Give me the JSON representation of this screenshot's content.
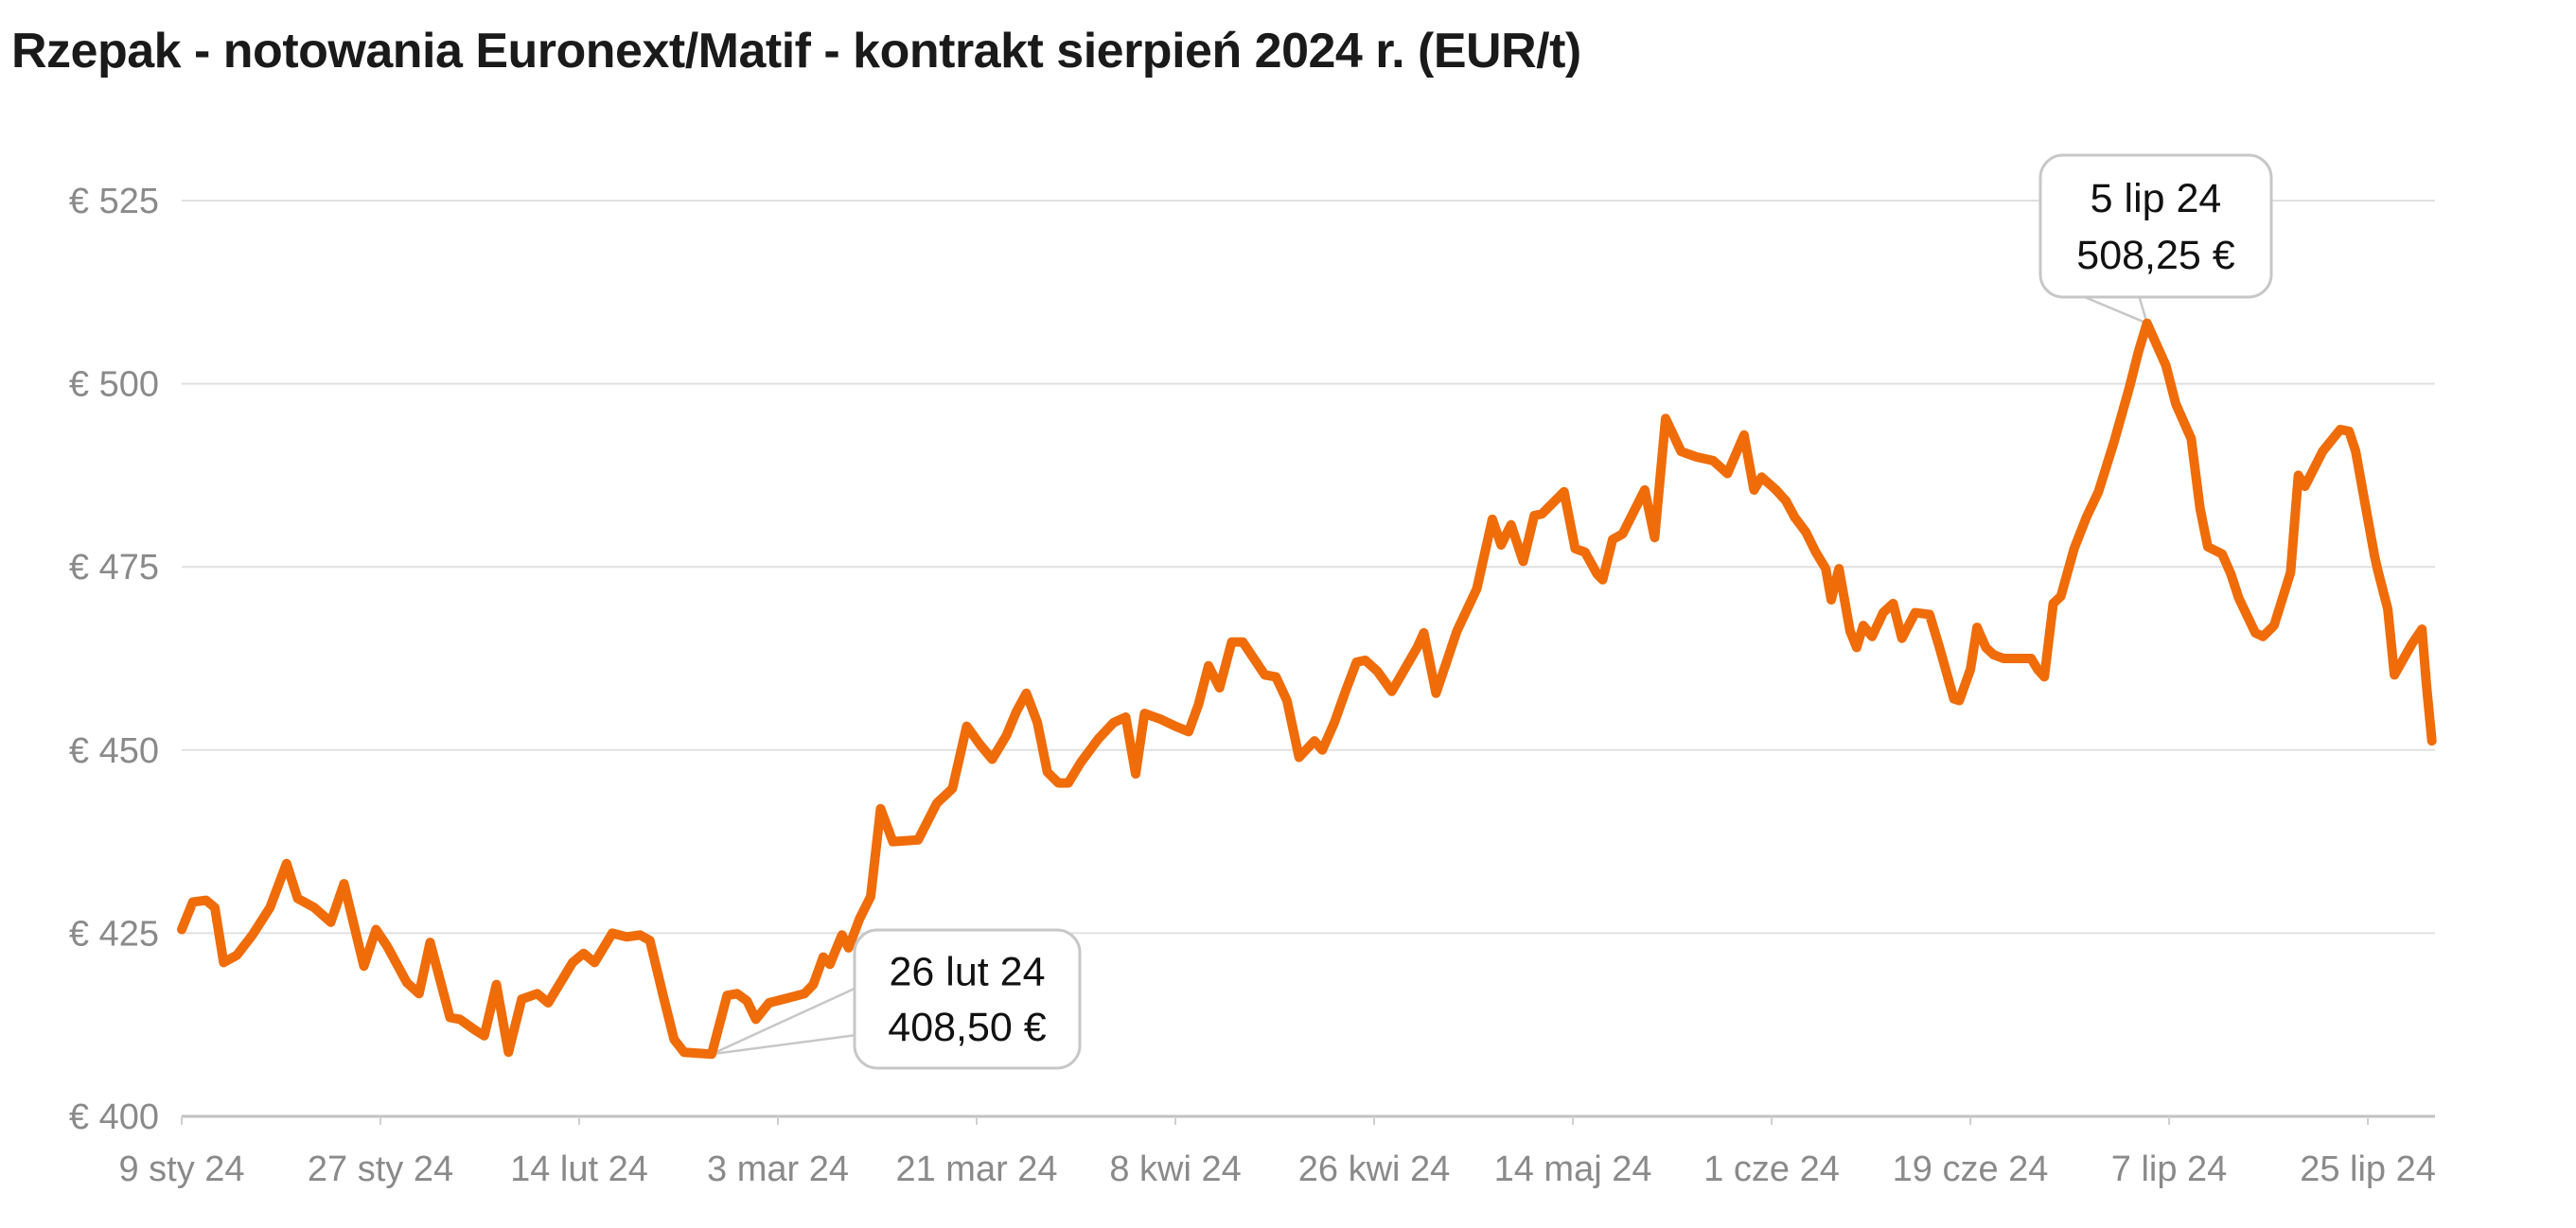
{
  "title": "Rzepak - notowania Euronext/Matif - kontrakt sierpień 2024 r. (EUR/t)",
  "colors": {
    "line": "#EF6C09",
    "grid": "#E0E0E0",
    "axis": "#C2C2C2",
    "tick": "#CFCFCF",
    "tick_label": "#8A8A8A",
    "title": "#1A1A1A",
    "callout_border": "#C7C7C7",
    "callout_fill": "#FFFFFF"
  },
  "chart_data": {
    "type": "line",
    "title": "Rzepak - notowania Euronext/Matif - kontrakt sierpień 2024 r. (EUR/t)",
    "unit": "EUR/t",
    "grid": true,
    "legend": false,
    "y_axis": {
      "tick_prefix": "€ ",
      "ticks": [
        525,
        500,
        475,
        450,
        425,
        400
      ],
      "range": [
        400,
        525
      ]
    },
    "x_axis": {
      "start_date": "2024-01-09",
      "tick_interval_days": 18,
      "tick_days": [
        0,
        18,
        36,
        54,
        72,
        90,
        108,
        126,
        144,
        162,
        180,
        198
      ],
      "tick_labels": [
        "9 sty 24",
        "27 sty 24",
        "14 lut 24",
        "3 mar 24",
        "21 mar 24",
        "8 kwi 24",
        "26 kwi 24",
        "14 maj 24",
        "1 cze 24",
        "19 cze 24",
        "7 lip 24",
        "25 lip 24"
      ]
    },
    "annotations": [
      {
        "id": "min",
        "label_date": "26 lut 24",
        "label_value": "408,50 €",
        "date": "2024-02-26",
        "day": 48,
        "value": 408.5
      },
      {
        "id": "max",
        "label_date": "5 lip 24",
        "label_value": "508,25 €",
        "date": "2024-07-05",
        "day": 178,
        "value": 508.25
      }
    ],
    "series_note": "pairs of [days since 2024-01-09, price EUR/t]",
    "series": [
      [
        0,
        425.5
      ],
      [
        1,
        429.25
      ],
      [
        2.2,
        429.5
      ],
      [
        3,
        428.5
      ],
      [
        3.8,
        421
      ],
      [
        5,
        422
      ],
      [
        6.4,
        424.75
      ],
      [
        8,
        428.5
      ],
      [
        9.5,
        434.5
      ],
      [
        10.5,
        429.75
      ],
      [
        12,
        428.5
      ],
      [
        13.5,
        426.5
      ],
      [
        14.7,
        431.75
      ],
      [
        16.5,
        420.5
      ],
      [
        17.6,
        425.5
      ],
      [
        18.6,
        423.25
      ],
      [
        20.4,
        418.25
      ],
      [
        21.5,
        416.75
      ],
      [
        22.5,
        423.75
      ],
      [
        24.3,
        413.5
      ],
      [
        25.2,
        413.25
      ],
      [
        26.6,
        411.75
      ],
      [
        27.4,
        411
      ],
      [
        28.5,
        418
      ],
      [
        29.6,
        408.75
      ],
      [
        30.8,
        416
      ],
      [
        32.2,
        416.75
      ],
      [
        33.2,
        415.5
      ],
      [
        35.4,
        421
      ],
      [
        36.4,
        422.25
      ],
      [
        37.4,
        421
      ],
      [
        39,
        425
      ],
      [
        40.3,
        424.5
      ],
      [
        41.5,
        424.75
      ],
      [
        42.4,
        424
      ],
      [
        43.6,
        416.5
      ],
      [
        44.6,
        410.5
      ],
      [
        45.5,
        408.75
      ],
      [
        48,
        408.5
      ],
      [
        49.4,
        416.5
      ],
      [
        50.3,
        416.75
      ],
      [
        51.2,
        415.75
      ],
      [
        52,
        413.25
      ],
      [
        53.2,
        415.5
      ],
      [
        54.5,
        416
      ],
      [
        56.4,
        416.75
      ],
      [
        57.2,
        418
      ],
      [
        58.1,
        421.75
      ],
      [
        58.7,
        420.75
      ],
      [
        59.8,
        424.75
      ],
      [
        60.4,
        423
      ],
      [
        61.4,
        427
      ],
      [
        62.4,
        430
      ],
      [
        63.3,
        442
      ],
      [
        64.4,
        437.5
      ],
      [
        66.7,
        437.75
      ],
      [
        68.4,
        442.75
      ],
      [
        69.8,
        444.75
      ],
      [
        71.1,
        453.25
      ],
      [
        72.3,
        450.75
      ],
      [
        73.4,
        448.75
      ],
      [
        74.7,
        452
      ],
      [
        75.6,
        455.25
      ],
      [
        76.5,
        457.75
      ],
      [
        77.5,
        453.75
      ],
      [
        78.4,
        447
      ],
      [
        79.4,
        445.5
      ],
      [
        80.3,
        445.5
      ],
      [
        81.4,
        448.25
      ],
      [
        83,
        451.5
      ],
      [
        84.4,
        453.75
      ],
      [
        85.5,
        454.5
      ],
      [
        86.4,
        446.75
      ],
      [
        87.2,
        455
      ],
      [
        88.6,
        454.25
      ],
      [
        90,
        453.25
      ],
      [
        91.2,
        452.5
      ],
      [
        92.1,
        456.25
      ],
      [
        93,
        461.5
      ],
      [
        94,
        458.5
      ],
      [
        95.1,
        464.75
      ],
      [
        96.1,
        464.75
      ],
      [
        97.1,
        462.5
      ],
      [
        98.1,
        460.25
      ],
      [
        99.1,
        460
      ],
      [
        100.1,
        456.75
      ],
      [
        101.2,
        449
      ],
      [
        102.6,
        451.25
      ],
      [
        103.3,
        450
      ],
      [
        104.4,
        453.75
      ],
      [
        105.4,
        458
      ],
      [
        106.4,
        462
      ],
      [
        107.2,
        462.25
      ],
      [
        108.3,
        460.75
      ],
      [
        109.6,
        458
      ],
      [
        111.9,
        464
      ],
      [
        112.5,
        466
      ],
      [
        113.6,
        457.75
      ],
      [
        115.5,
        466.25
      ],
      [
        117.3,
        472
      ],
      [
        118.7,
        481.5
      ],
      [
        119.5,
        478
      ],
      [
        120.4,
        480.75
      ],
      [
        121.5,
        475.75
      ],
      [
        122.5,
        482
      ],
      [
        123.2,
        482.25
      ],
      [
        125.2,
        485.25
      ],
      [
        126.2,
        477.5
      ],
      [
        127.1,
        477
      ],
      [
        128.2,
        474
      ],
      [
        128.7,
        473.25
      ],
      [
        129.6,
        478.75
      ],
      [
        130.5,
        479.5
      ],
      [
        132.5,
        485.5
      ],
      [
        133.4,
        479
      ],
      [
        134.4,
        495.25
      ],
      [
        135.8,
        490.75
      ],
      [
        137.2,
        490
      ],
      [
        138.7,
        489.5
      ],
      [
        140,
        487.75
      ],
      [
        141.5,
        493
      ],
      [
        142.4,
        485.5
      ],
      [
        143.1,
        487.25
      ],
      [
        144.4,
        485.5
      ],
      [
        145.3,
        484
      ],
      [
        146.1,
        481.75
      ],
      [
        147.1,
        479.75
      ],
      [
        148,
        477
      ],
      [
        148.9,
        474.75
      ],
      [
        149.4,
        470.5
      ],
      [
        150.1,
        474.75
      ],
      [
        151.1,
        466.25
      ],
      [
        151.7,
        464
      ],
      [
        152.3,
        467
      ],
      [
        153.1,
        465.5
      ],
      [
        154.1,
        468.75
      ],
      [
        155,
        470
      ],
      [
        155.8,
        465.25
      ],
      [
        157,
        468.75
      ],
      [
        158.3,
        468.5
      ],
      [
        159.2,
        464
      ],
      [
        160.5,
        457
      ],
      [
        161,
        456.75
      ],
      [
        162,
        461
      ],
      [
        162.6,
        466.75
      ],
      [
        163.4,
        464
      ],
      [
        164.1,
        463
      ],
      [
        165,
        462.5
      ],
      [
        167.5,
        462.5
      ],
      [
        168.1,
        461
      ],
      [
        168.7,
        460
      ],
      [
        169.5,
        470
      ],
      [
        170.2,
        471
      ],
      [
        171.4,
        477.5
      ],
      [
        172.5,
        481.75
      ],
      [
        173.6,
        485.25
      ],
      [
        175,
        492
      ],
      [
        176.4,
        499.5
      ],
      [
        177.2,
        504.25
      ],
      [
        178,
        508.25
      ],
      [
        179.7,
        502.5
      ],
      [
        180.6,
        497.25
      ],
      [
        182,
        492.5
      ],
      [
        182.8,
        483
      ],
      [
        183.5,
        477.75
      ],
      [
        184.8,
        476.75
      ],
      [
        185.6,
        474
      ],
      [
        186.3,
        470.75
      ],
      [
        187.8,
        466
      ],
      [
        188.5,
        465.5
      ],
      [
        189.5,
        467
      ],
      [
        191,
        474.25
      ],
      [
        191.7,
        487.5
      ],
      [
        192.3,
        486
      ],
      [
        193.9,
        490.75
      ],
      [
        195.5,
        493.75
      ],
      [
        196.3,
        493.5
      ],
      [
        196.9,
        490.75
      ],
      [
        197.4,
        486.5
      ],
      [
        198,
        481.5
      ],
      [
        198.6,
        476.5
      ],
      [
        198.9,
        474.5
      ],
      [
        199.8,
        469.25
      ],
      [
        200.4,
        460.25
      ],
      [
        202,
        464.5
      ],
      [
        202.9,
        466.5
      ],
      [
        203.3,
        459
      ],
      [
        203.8,
        451.25
      ]
    ]
  }
}
